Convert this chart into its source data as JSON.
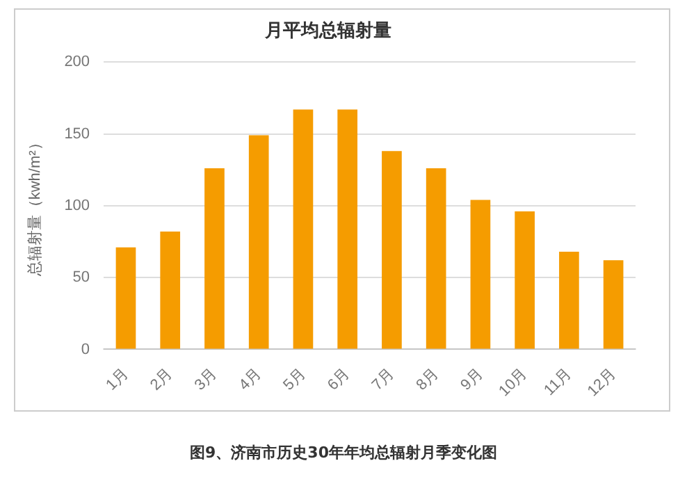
{
  "chart_data": {
    "type": "bar",
    "title": "月平均总辐射量",
    "ylabel": "总辐射量（kwh/m²）",
    "categories": [
      "1月",
      "2月",
      "3月",
      "4月",
      "5月",
      "6月",
      "7月",
      "8月",
      "9月",
      "10月",
      "11月",
      "12月"
    ],
    "values": [
      71,
      82,
      126,
      149,
      167,
      167,
      138,
      126,
      104,
      96,
      68,
      62
    ],
    "color": "#f59c00",
    "ylim": [
      0,
      200
    ],
    "yticks": [
      0,
      50,
      100,
      150,
      200
    ],
    "grid": "y",
    "legend": false,
    "annotations": [
      "图9、济南市历史30年年均总辐射月季变化图"
    ]
  }
}
